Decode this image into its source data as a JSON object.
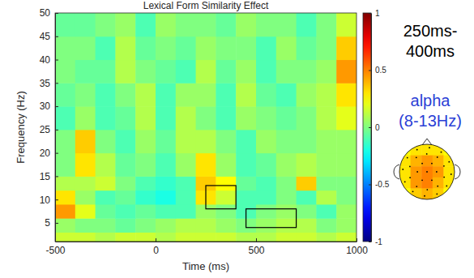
{
  "chart_data": {
    "type": "heatmap",
    "title": "Lexical Form Similarity Effect",
    "x_label": "Time (ms)",
    "y_label": "Frequency (Hz)",
    "xlim": [
      -500,
      1000
    ],
    "xticks": [
      -500,
      0,
      500,
      1000
    ],
    "ylim": [
      1,
      50
    ],
    "yticks": [
      5,
      10,
      15,
      20,
      25,
      30,
      35,
      40,
      45,
      50
    ],
    "x_bins": [
      -500,
      -400,
      -300,
      -200,
      -100,
      0,
      100,
      200,
      300,
      400,
      500,
      600,
      700,
      800,
      900,
      1000
    ],
    "y_bins": [
      1,
      3,
      6,
      9,
      12,
      15,
      20,
      25,
      30,
      35,
      40,
      45,
      50
    ],
    "values": [
      [
        0.15,
        0.15,
        0.1,
        0.15,
        0.15,
        0.1,
        0.15,
        0.15,
        0.15,
        0.1,
        0.1,
        0.15,
        0.15,
        0.1,
        0.15
      ],
      [
        0.05,
        0.0,
        0.0,
        -0.05,
        0.0,
        0.05,
        0.1,
        0.1,
        0.05,
        0.0,
        0.05,
        0.1,
        0.1,
        0.0,
        0.05
      ],
      [
        0.45,
        0.2,
        -0.05,
        -0.1,
        -0.05,
        -0.1,
        -0.1,
        0.05,
        0.0,
        -0.1,
        0.0,
        0.05,
        0.0,
        -0.1,
        0.05
      ],
      [
        0.3,
        0.05,
        -0.1,
        -0.05,
        -0.15,
        -0.2,
        -0.1,
        0.3,
        0.15,
        -0.1,
        -0.1,
        0.0,
        -0.1,
        0.1,
        0.0
      ],
      [
        0.1,
        0.1,
        0.15,
        0.0,
        -0.1,
        -0.15,
        -0.1,
        0.35,
        0.25,
        -0.05,
        -0.1,
        0.0,
        0.35,
        0.0,
        0.0
      ],
      [
        0.0,
        0.3,
        0.1,
        -0.05,
        0.0,
        -0.1,
        0.05,
        0.3,
        0.05,
        -0.1,
        -0.05,
        0.05,
        0.1,
        0.05,
        0.05
      ],
      [
        0.0,
        0.35,
        0.0,
        -0.1,
        0.05,
        -0.05,
        0.1,
        0.1,
        0.0,
        -0.1,
        0.05,
        0.0,
        0.0,
        0.05,
        0.05
      ],
      [
        -0.1,
        0.05,
        -0.1,
        -0.05,
        0.1,
        -0.1,
        0.1,
        0.0,
        -0.1,
        0.05,
        0.0,
        -0.05,
        0.0,
        0.1,
        0.2
      ],
      [
        -0.05,
        0.0,
        -0.1,
        0.0,
        0.1,
        -0.1,
        0.05,
        0.05,
        -0.1,
        0.1,
        -0.05,
        -0.1,
        0.05,
        0.1,
        0.3
      ],
      [
        0.0,
        -0.05,
        -0.05,
        0.1,
        0.0,
        -0.05,
        -0.1,
        0.1,
        -0.05,
        0.05,
        -0.1,
        0.0,
        0.0,
        0.05,
        0.45
      ],
      [
        0.0,
        0.0,
        -0.1,
        0.1,
        -0.05,
        0.0,
        -0.05,
        0.05,
        0.0,
        0.0,
        -0.1,
        0.05,
        -0.05,
        0.0,
        0.35
      ],
      [
        -0.05,
        -0.05,
        0.0,
        0.05,
        -0.1,
        0.05,
        0.0,
        0.0,
        -0.05,
        0.05,
        0.0,
        0.0,
        -0.1,
        0.0,
        0.15
      ]
    ],
    "colorbar": {
      "range": [
        -1,
        1
      ],
      "ticks": [
        -1,
        -0.5,
        0,
        0.5,
        1
      ]
    },
    "boxes": [
      {
        "x": [
          250,
          400
        ],
        "y": [
          8,
          13
        ]
      },
      {
        "x": [
          450,
          700
        ],
        "y": [
          4,
          8
        ]
      }
    ],
    "annotations": {
      "window": [
        "250ms-",
        "400ms"
      ],
      "band": [
        "alpha",
        "(8-13Hz)"
      ]
    },
    "topography": {
      "values": [
        [
          0.25,
          0.3,
          0.3,
          0.3,
          0.25
        ],
        [
          0.3,
          0.4,
          0.45,
          0.4,
          0.3
        ],
        [
          0.3,
          0.45,
          0.5,
          0.45,
          0.3
        ],
        [
          0.3,
          0.45,
          0.5,
          0.4,
          0.3
        ],
        [
          0.25,
          0.35,
          0.4,
          0.35,
          0.25
        ]
      ]
    }
  }
}
